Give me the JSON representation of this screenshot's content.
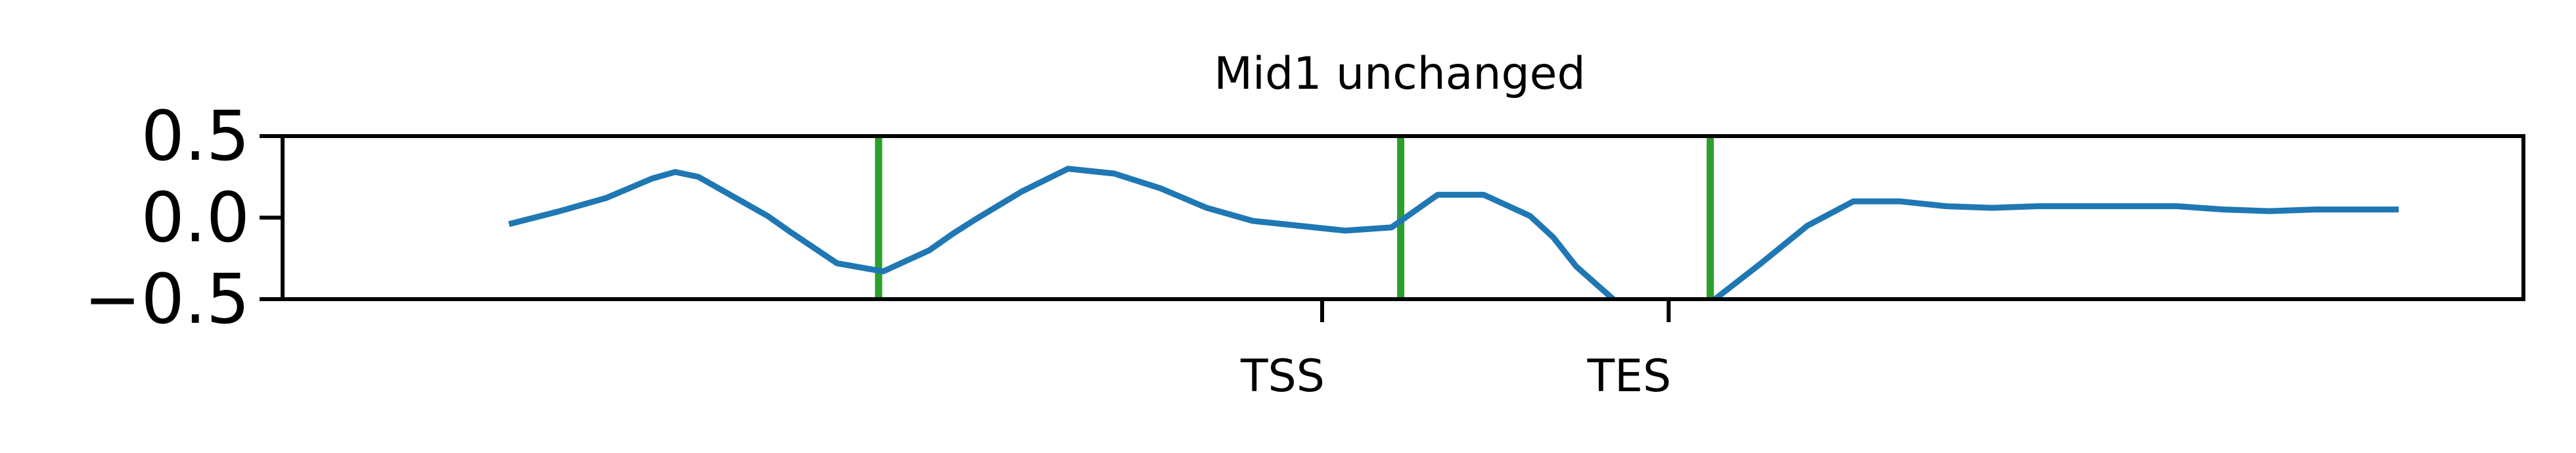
{
  "chart_data": {
    "type": "line",
    "title": "Mid1 unchanged",
    "xlabel": "",
    "ylabel": "",
    "ylim": [
      -0.5,
      0.5
    ],
    "yticks": [
      {
        "value": 0.5,
        "label": "0.5"
      },
      {
        "value": 0.0,
        "label": "0.0"
      },
      {
        "value": -0.5,
        "label": "−0.5"
      }
    ],
    "xticks": [
      {
        "value": 2250,
        "label": "TSS"
      },
      {
        "value": 3000,
        "label": "TES"
      }
    ],
    "xlim": [
      0,
      4850
    ],
    "grid": false,
    "legend": "none",
    "series": [
      {
        "color": "#1f77b4",
        "x": [
          490,
          600,
          700,
          800,
          850,
          900,
          950,
          1000,
          1050,
          1100,
          1200,
          1300,
          1400,
          1450,
          1500,
          1600,
          1700,
          1800,
          1900,
          2000,
          2100,
          2200,
          2300,
          2400,
          2500,
          2600,
          2700,
          2750,
          2800,
          2900,
          3000,
          3100,
          3200,
          3300,
          3400,
          3500,
          3600,
          3700,
          3800,
          3900,
          4000,
          4100,
          4200,
          4300,
          4400,
          4500,
          4580
        ],
        "y": [
          -0.04,
          0.04,
          0.12,
          0.24,
          0.28,
          0.25,
          0.17,
          0.09,
          0.01,
          -0.09,
          -0.28,
          -0.33,
          -0.2,
          -0.1,
          -0.01,
          0.16,
          0.3,
          0.27,
          0.18,
          0.06,
          -0.02,
          -0.05,
          -0.08,
          -0.06,
          0.14,
          0.14,
          0.01,
          -0.12,
          -0.3,
          -0.55,
          -0.8,
          -0.5,
          -0.28,
          -0.05,
          0.1,
          0.1,
          0.07,
          0.06,
          0.07,
          0.07,
          0.07,
          0.07,
          0.05,
          0.04,
          0.05,
          0.05,
          0.05
        ]
      }
    ],
    "vlines": [
      {
        "x": 1290,
        "color": "#2ca02c"
      },
      {
        "x": 2420,
        "color": "#2ca02c"
      },
      {
        "x": 3090,
        "color": "#2ca02c"
      }
    ]
  }
}
